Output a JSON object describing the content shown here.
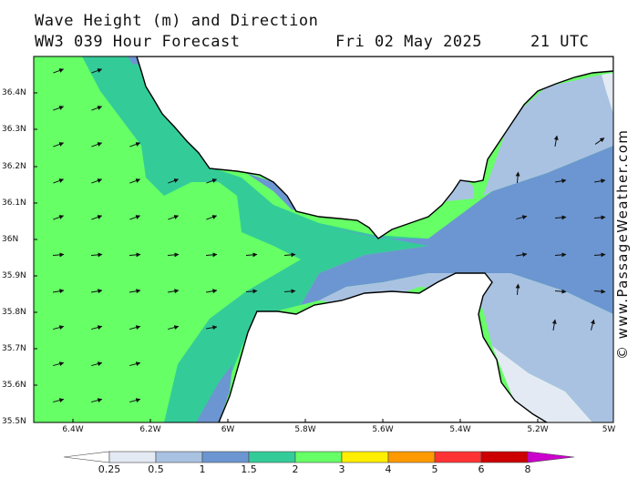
{
  "header": {
    "line1": "Wave Height (m) and Direction",
    "line2": "WW3 039 Hour Forecast",
    "date": "Fri 02 May 2025",
    "time": "21 UTC"
  },
  "axes": {
    "lat_labels": [
      "36.4N",
      "36.3N",
      "36.2N",
      "36.1N",
      "36N",
      "35.9N",
      "35.8N",
      "35.7N",
      "35.6N",
      "35.5N"
    ],
    "lon_labels": [
      "6.4W",
      "6.2W",
      "6W",
      "5.8W",
      "5.6W",
      "5.4W",
      "5.2W",
      "5W"
    ]
  },
  "credit": "© www.PassageWeather.com",
  "colorbar": {
    "labels": [
      "0.25",
      "0.5",
      "1",
      "1.5",
      "2",
      "3",
      "4",
      "5",
      "6",
      "8"
    ],
    "colors": [
      "#e4eaf4",
      "#a9c2e2",
      "#6c96d1",
      "#33cc99",
      "#66ff66",
      "#ffee00",
      "#ff9900",
      "#ff3333",
      "#cc0000",
      "#cc00cc"
    ]
  },
  "legend_colors": {
    "land": "#ffffff",
    "h_0_5_1": "#a9c2e2",
    "h_1_1_5": "#6c96d1",
    "h_1_5_2": "#33cc99",
    "h_2_3": "#66ff66"
  }
}
